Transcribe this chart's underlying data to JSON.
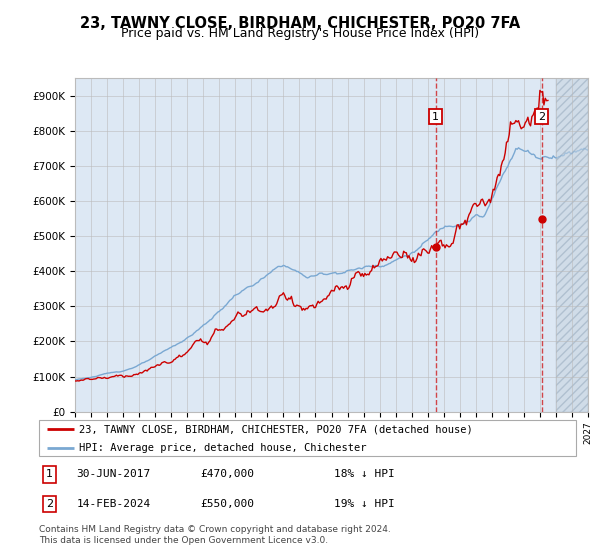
{
  "title": "23, TAWNY CLOSE, BIRDHAM, CHICHESTER, PO20 7FA",
  "subtitle": "Price paid vs. HM Land Registry's House Price Index (HPI)",
  "ylim": [
    0,
    950000
  ],
  "yticks": [
    0,
    100000,
    200000,
    300000,
    400000,
    500000,
    600000,
    700000,
    800000,
    900000
  ],
  "ytick_labels": [
    "£0",
    "£100K",
    "£200K",
    "£300K",
    "£400K",
    "£500K",
    "£600K",
    "£700K",
    "£800K",
    "£900K"
  ],
  "x_start_year": 1995,
  "x_end_year": 2027,
  "sale1_year": 2017.5,
  "sale1_price": 470000,
  "sale2_year": 2024.12,
  "sale2_price": 550000,
  "legend_line1": "23, TAWNY CLOSE, BIRDHAM, CHICHESTER, PO20 7FA (detached house)",
  "legend_line2": "HPI: Average price, detached house, Chichester",
  "sale1_date_str": "30-JUN-2017",
  "sale2_date_str": "14-FEB-2024",
  "sale1_pct": "18% ↓ HPI",
  "sale2_pct": "19% ↓ HPI",
  "footer": "Contains HM Land Registry data © Crown copyright and database right 2024.\nThis data is licensed under the Open Government Licence v3.0.",
  "sale_color": "#cc0000",
  "hpi_color": "#7aa8d2",
  "bg_color": "#dde8f4",
  "hatch_color": "#c8d8e8",
  "grid_color": "#bbbbbb",
  "title_fontsize": 10.5,
  "subtitle_fontsize": 9
}
